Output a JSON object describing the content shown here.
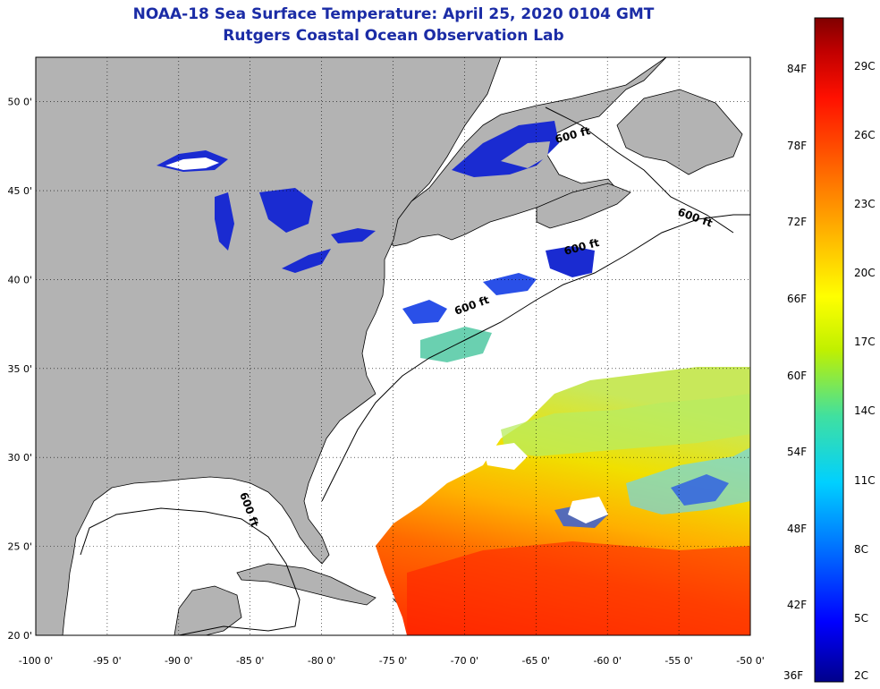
{
  "header": {
    "title": "NOAA-18 Sea Surface Temperature:  April 25, 2020 0104 GMT",
    "subtitle": "Rutgers Coastal Ocean Observation Lab"
  },
  "map": {
    "longitude_labels": [
      "-100 0'",
      "-95 0'",
      "-90 0'",
      "-85 0'",
      "-80 0'",
      "-75 0'",
      "-70 0'",
      "-65 0'",
      "-60 0'",
      "-55 0'",
      "-50 0'"
    ],
    "latitude_labels": [
      "50 0'",
      "45 0'",
      "40 0'",
      "35 0'",
      "30 0'",
      "25 0'",
      "20 0'"
    ],
    "lon_range": [
      -100,
      -50
    ],
    "lat_range": [
      20,
      52.5
    ],
    "isobath_labels": [
      "600 ft",
      "600 ft",
      "600 ft",
      "600 ft",
      "600 ft"
    ],
    "land_color": "#b3b3b3",
    "cloud_color": "#ffffff"
  },
  "colorbar": {
    "fahrenheit_labels": [
      "84F",
      "78F",
      "72F",
      "66F",
      "60F",
      "54F",
      "48F",
      "42F",
      "36F"
    ],
    "celsius_labels": [
      "29C",
      "26C",
      "23C",
      "20C",
      "17C",
      "14C",
      "11C",
      "8C",
      "5C",
      "2C"
    ],
    "stops": [
      "#00008b",
      "#0000ff",
      "#0070ff",
      "#00d0ff",
      "#40e0a0",
      "#c0f000",
      "#ffff00",
      "#ffb000",
      "#ff6000",
      "#ff1000",
      "#c00000",
      "#800000"
    ]
  }
}
